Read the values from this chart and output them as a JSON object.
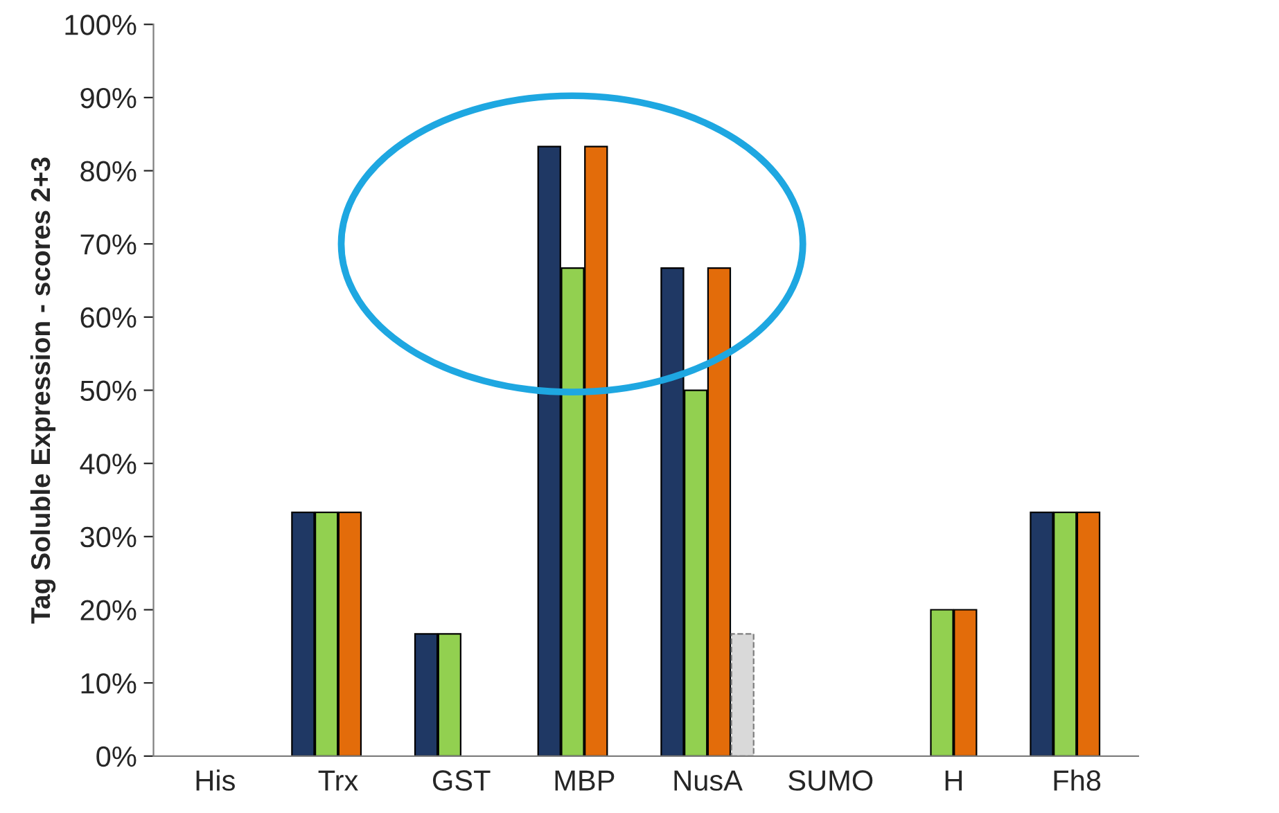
{
  "chart_data": {
    "type": "bar",
    "ylabel": "Tag Soluble Expression - scores 2+3",
    "categories": [
      "His",
      "Trx",
      "GST",
      "MBP",
      "NusA",
      "SUMO",
      "H",
      "Fh8"
    ],
    "series": [
      {
        "color": "#1f3864",
        "values": [
          null,
          33.3,
          16.7,
          83.3,
          66.7,
          null,
          null,
          33.3
        ]
      },
      {
        "color": "#92d050",
        "values": [
          null,
          33.3,
          16.7,
          66.7,
          50,
          null,
          20,
          33.3
        ]
      },
      {
        "color": "#e36c0a",
        "values": [
          null,
          33.3,
          null,
          83.3,
          66.7,
          null,
          20,
          33.3
        ]
      },
      {
        "color": "#d9d9d9",
        "line_style": "dashed",
        "values": [
          null,
          null,
          null,
          null,
          16.7,
          null,
          null,
          null
        ]
      }
    ],
    "ylim": [
      0,
      100
    ],
    "yticks": [
      {
        "value": 0,
        "label": "0%"
      },
      {
        "value": 10,
        "label": "10%"
      },
      {
        "value": 20,
        "label": "20%"
      },
      {
        "value": 30,
        "label": "30%"
      },
      {
        "value": 40,
        "label": "40%"
      },
      {
        "value": 50,
        "label": "50%"
      },
      {
        "value": 60,
        "label": "60%"
      },
      {
        "value": 70,
        "label": "70%"
      },
      {
        "value": 80,
        "label": "80%"
      },
      {
        "value": 90,
        "label": "90%"
      },
      {
        "value": 100,
        "label": "100%"
      }
    ],
    "grid": false
  }
}
